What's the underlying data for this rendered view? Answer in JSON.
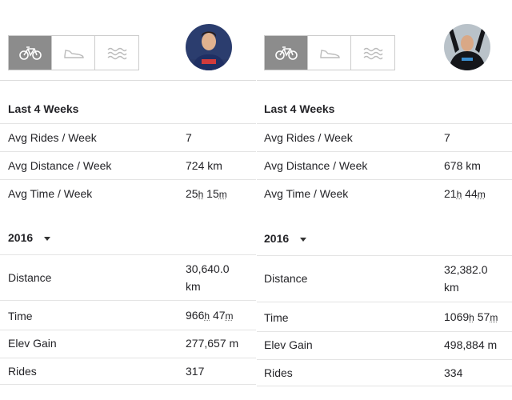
{
  "athletes": [
    {
      "tabs": [
        "bike-icon",
        "shoe-icon",
        "swim-icon"
      ],
      "active_tab": 0,
      "last4": {
        "title": "Last 4 Weeks",
        "rows": [
          {
            "label": "Avg Rides / Week",
            "value": "7"
          },
          {
            "label": "Avg Distance / Week",
            "value": "724 km"
          },
          {
            "label": "Avg Time / Week",
            "hours": "25",
            "h_unit": "h",
            "minutes": "15",
            "m_unit": "m"
          }
        ]
      },
      "year": {
        "title": "2016",
        "distance": {
          "label": "Distance",
          "value_line1": "30,640.0",
          "value_line2": "km"
        },
        "time": {
          "label": "Time",
          "hours": "966",
          "h_unit": "h",
          "minutes": "47",
          "m_unit": "m"
        },
        "elev": {
          "label": "Elev Gain",
          "value": "277,657 m"
        },
        "rides": {
          "label": "Rides",
          "value": "317"
        }
      }
    },
    {
      "tabs": [
        "bike-icon",
        "shoe-icon",
        "swim-icon"
      ],
      "active_tab": 0,
      "last4": {
        "title": "Last 4 Weeks",
        "rows": [
          {
            "label": "Avg Rides / Week",
            "value": "7"
          },
          {
            "label": "Avg Distance / Week",
            "value": "678 km"
          },
          {
            "label": "Avg Time / Week",
            "hours": "21",
            "h_unit": "h",
            "minutes": "44",
            "m_unit": "m"
          }
        ]
      },
      "year": {
        "title": "2016",
        "distance": {
          "label": "Distance",
          "value_line1": "32,382.0",
          "value_line2": "km"
        },
        "time": {
          "label": "Time",
          "hours": "1069",
          "h_unit": "h",
          "minutes": "57",
          "m_unit": "m"
        },
        "elev": {
          "label": "Elev Gain",
          "value": "498,884 m"
        },
        "rides": {
          "label": "Rides",
          "value": "334"
        }
      }
    }
  ],
  "colors": {
    "active_tab_bg": "#8c8c8c",
    "text": "#242428",
    "divider": "#dddddd"
  }
}
